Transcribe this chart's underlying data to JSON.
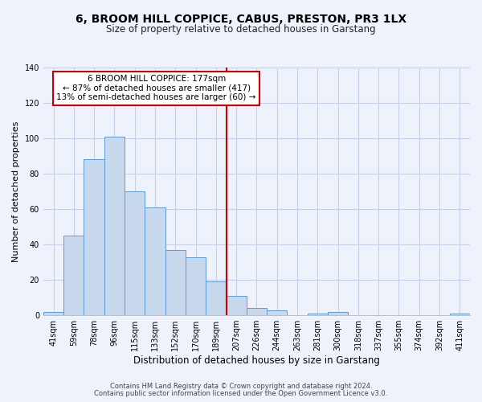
{
  "title": "6, BROOM HILL COPPICE, CABUS, PRESTON, PR3 1LX",
  "subtitle": "Size of property relative to detached houses in Garstang",
  "xlabel": "Distribution of detached houses by size in Garstang",
  "ylabel": "Number of detached properties",
  "categories": [
    "41sqm",
    "59sqm",
    "78sqm",
    "96sqm",
    "115sqm",
    "133sqm",
    "152sqm",
    "170sqm",
    "189sqm",
    "207sqm",
    "226sqm",
    "244sqm",
    "263sqm",
    "281sqm",
    "300sqm",
    "318sqm",
    "337sqm",
    "355sqm",
    "374sqm",
    "392sqm",
    "411sqm"
  ],
  "values": [
    2,
    45,
    88,
    101,
    70,
    61,
    37,
    33,
    19,
    11,
    4,
    3,
    0,
    1,
    2,
    0,
    0,
    0,
    0,
    0,
    1
  ],
  "bar_color": "#c8d9ee",
  "bar_edge_color": "#5b9bd5",
  "vline_x": 8.5,
  "vline_color": "#cc0000",
  "annotation_text": "6 BROOM HILL COPPICE: 177sqm\n← 87% of detached houses are smaller (417)\n13% of semi-detached houses are larger (60) →",
  "annotation_box_color": "#ffffff",
  "annotation_box_edge": "#cc0000",
  "footnote1": "Contains HM Land Registry data © Crown copyright and database right 2024.",
  "footnote2": "Contains public sector information licensed under the Open Government Licence v3.0.",
  "ylim": [
    0,
    140
  ],
  "yticks": [
    0,
    20,
    40,
    60,
    80,
    100,
    120,
    140
  ],
  "background_color": "#eef2fb",
  "grid_color": "#c8cfe8",
  "title_fontsize": 10,
  "subtitle_fontsize": 8.5,
  "ylabel_fontsize": 8,
  "xlabel_fontsize": 8.5,
  "tick_fontsize": 7,
  "annot_fontsize": 7.5,
  "footnote_fontsize": 6
}
